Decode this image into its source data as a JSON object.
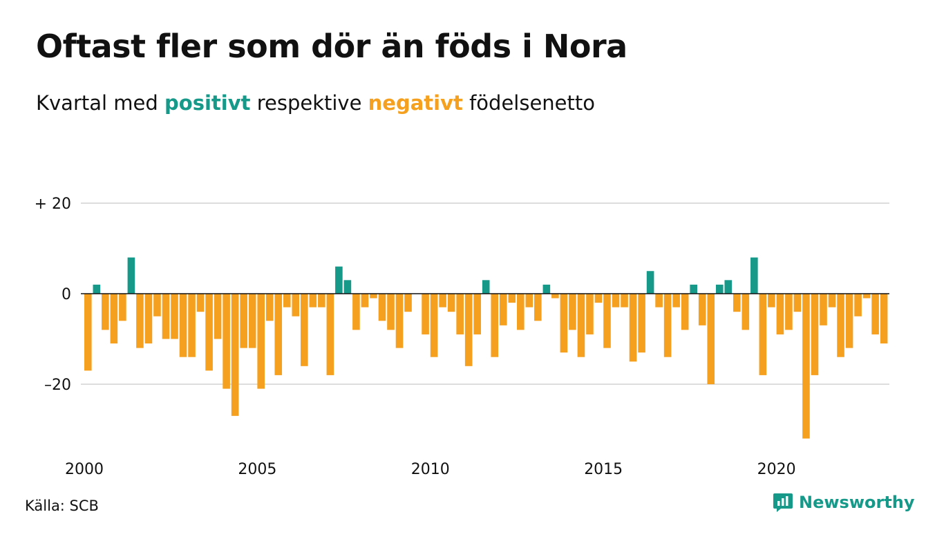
{
  "title": "Oftast fler som dör än föds i Nora",
  "subtitle": {
    "pre": "Kvartal med",
    "positive_word": "positivt",
    "middle": "respektive",
    "negative_word": "negativt",
    "post": "födelsenetto"
  },
  "source": "Källa: SCB",
  "brand": "Newsworthy",
  "colors": {
    "positive": "#17998a",
    "negative": "#f5a01e",
    "grid": "#dddddd",
    "zero": "#111111"
  },
  "chart_data": {
    "type": "bar",
    "x_start": "2000 Q1",
    "x_step": "quarter",
    "x_ticks": [
      "2000",
      "2005",
      "2010",
      "2015",
      "2020"
    ],
    "y_ticks": [
      {
        "value": 20,
        "label": "+ 20"
      },
      {
        "value": 0,
        "label": "0"
      },
      {
        "value": -20,
        "label": "–20"
      }
    ],
    "ylim": [
      -33,
      20
    ],
    "grid": true,
    "values": [
      -17,
      2,
      -8,
      -11,
      -6,
      8,
      -12,
      -11,
      -5,
      -10,
      -10,
      -14,
      -14,
      -4,
      -17,
      -10,
      -21,
      -27,
      -12,
      -12,
      -21,
      -6,
      -18,
      -3,
      -5,
      -16,
      -3,
      -3,
      -18,
      6,
      3,
      -8,
      -3,
      -1,
      -6,
      -8,
      -12,
      -4,
      0,
      -9,
      -14,
      -3,
      -4,
      -9,
      -16,
      -9,
      3,
      -14,
      -7,
      -2,
      -8,
      -3,
      -6,
      2,
      -1,
      -13,
      -8,
      -14,
      -9,
      -2,
      -12,
      -3,
      -3,
      -15,
      -13,
      5,
      -3,
      -14,
      -3,
      -8,
      2,
      -7,
      -20,
      2,
      3,
      -4,
      -8,
      8,
      -18,
      -3,
      -9,
      -8,
      -4,
      -32,
      -18,
      -7,
      -3,
      -14,
      -12,
      -5,
      -1,
      -9,
      -11
    ]
  }
}
